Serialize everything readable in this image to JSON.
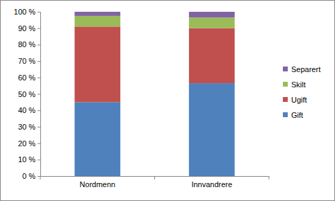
{
  "chart_data": {
    "type": "bar",
    "stacked": true,
    "legend": "right",
    "categories": [
      "Nordmenn",
      "Innvandrere"
    ],
    "series": [
      {
        "name": "Gift",
        "color": "#4f81bd",
        "values": [
          45,
          56.5
        ]
      },
      {
        "name": "Ugift",
        "color": "#c0504d",
        "values": [
          46,
          33.5
        ]
      },
      {
        "name": "Skilt",
        "color": "#9bbb59",
        "values": [
          6.5,
          6.5
        ]
      },
      {
        "name": "Separert",
        "color": "#8064a2",
        "values": [
          2.5,
          3.5
        ]
      }
    ],
    "ylim": [
      0,
      100
    ],
    "yticks": [
      {
        "value": 0,
        "label": "0 %"
      },
      {
        "value": 10,
        "label": "10 %"
      },
      {
        "value": 20,
        "label": "20 %"
      },
      {
        "value": 30,
        "label": "30 %"
      },
      {
        "value": 40,
        "label": "40 %"
      },
      {
        "value": 50,
        "label": "50 %"
      },
      {
        "value": 60,
        "label": "60 %"
      },
      {
        "value": 70,
        "label": "70 %"
      },
      {
        "value": 80,
        "label": "80 %"
      },
      {
        "value": 90,
        "label": "90 %"
      },
      {
        "value": 100,
        "label": "100 %"
      }
    ]
  }
}
